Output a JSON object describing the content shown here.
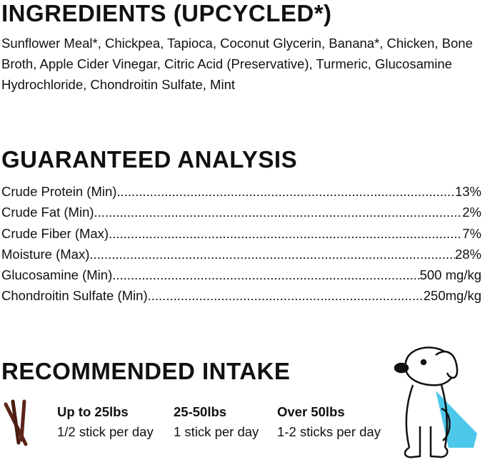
{
  "ingredients": {
    "title": "INGREDIENTS (UPCYCLED*)",
    "text": "Sunflower Meal*, Chickpea, Tapioca, Coconut Glycerin, Banana*, Chicken, Bone Broth, Apple Cider Vinegar, Citric Acid (Preservative), Turmeric, Glucosamine Hydrochloride, Chondroitin Sulfate, Mint"
  },
  "analysis": {
    "title": "GUARANTEED ANALYSIS",
    "rows": [
      {
        "label": "Crude Protein (Min)",
        "value": "13%"
      },
      {
        "label": "Crude Fat (Min)",
        "value": "2%"
      },
      {
        "label": "Crude Fiber (Max)",
        "value": "7%"
      },
      {
        "label": "Moisture (Max)",
        "value": "28%"
      },
      {
        "label": "Glucosamine (Min)",
        "value": "500 mg/kg"
      },
      {
        "label": "Chondroitin Sulfate (Min)",
        "value": "250mg/kg"
      }
    ]
  },
  "intake": {
    "title": "RECOMMENDED INTAKE",
    "columns": [
      {
        "weight": "Up to 25lbs",
        "amount": "1/2 stick per day"
      },
      {
        "weight": "25-50lbs",
        "amount": "1 stick per day"
      },
      {
        "weight": "Over 50lbs",
        "amount": "1-2 sticks per day"
      }
    ],
    "icons": [
      "sticks-icon",
      "dog-illustration"
    ],
    "colors": {
      "stick": "#5a2418",
      "cape": "#4cc8ea"
    }
  }
}
